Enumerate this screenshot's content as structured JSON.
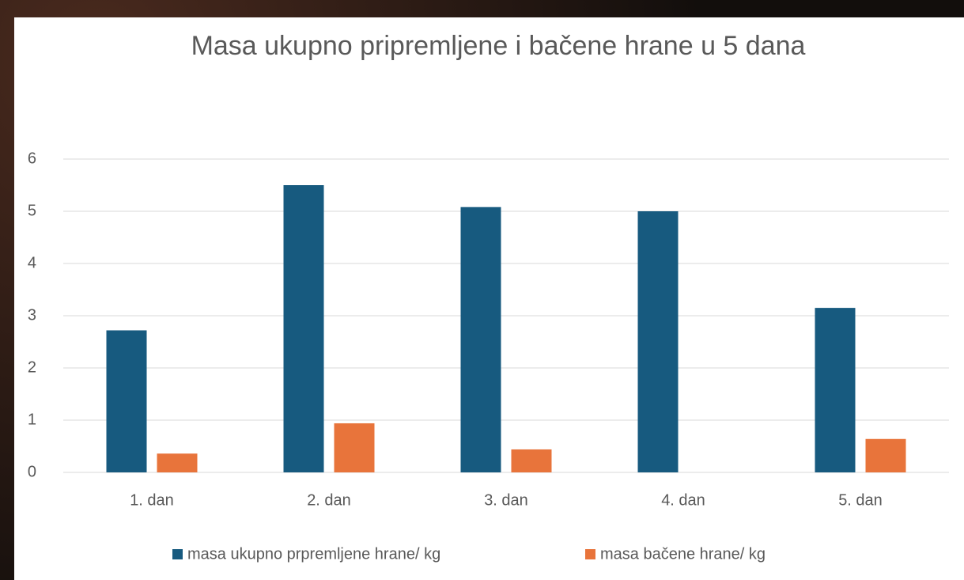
{
  "chart_data": {
    "type": "bar",
    "title": "Masa ukupno pripremljene i bačene hrane u 5 dana",
    "categories": [
      "1. dan",
      "2. dan",
      "3. dan",
      "4. dan",
      "5. dan"
    ],
    "series": [
      {
        "name": "masa ukupno prpremljene hrane/ kg",
        "color": "#175a7f",
        "values": [
          2.72,
          5.5,
          5.08,
          5.0,
          3.15
        ]
      },
      {
        "name": "masa bačene hrane/ kg",
        "color": "#e8743b",
        "values": [
          0.36,
          0.94,
          0.44,
          0,
          0.64
        ]
      }
    ],
    "ylim": [
      0,
      6
    ],
    "yticks": [
      0,
      1,
      2,
      3,
      4,
      5,
      6
    ],
    "grid": true,
    "legend": "bottom"
  }
}
